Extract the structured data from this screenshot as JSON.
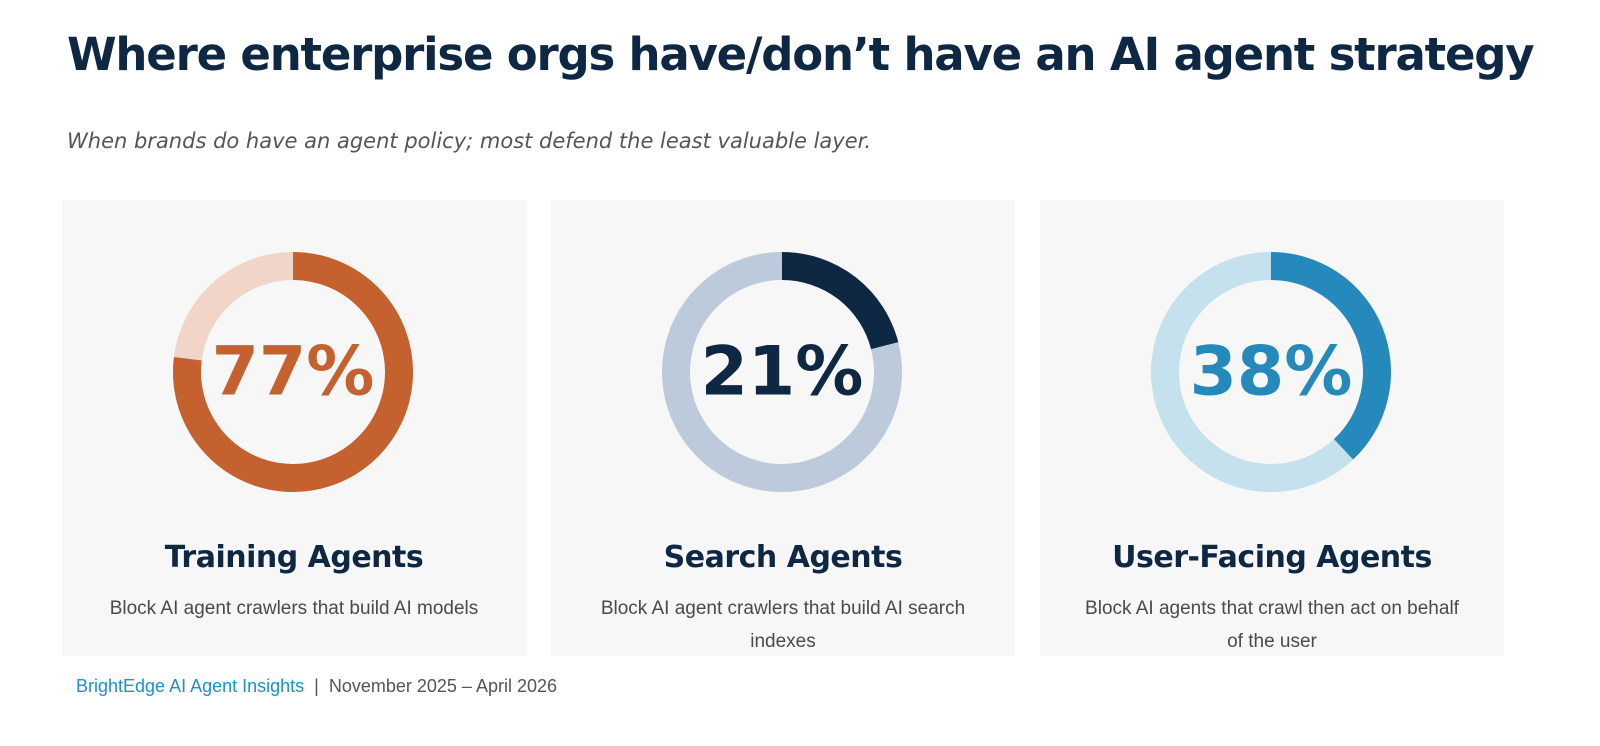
{
  "title": "Where enterprise orgs have/don’t have an AI agent strategy",
  "subtitle": "When brands do have an agent policy; most defend the least valuable layer.",
  "cards": [
    {
      "title": "Training Agents",
      "description": "Block AI agent crawlers that build AI models",
      "value_label": "77%"
    },
    {
      "title": "Search Agents",
      "description": "Block AI agent crawlers that build AI search indexes",
      "value_label": "21%"
    },
    {
      "title": "User-Facing Agents",
      "description": "Block AI agents that crawl then act on behalf of the user",
      "value_label": "38%"
    }
  ],
  "footer": {
    "brand": "BrightEdge AI Agent Insights",
    "separator": "|",
    "period": "November 2025 – April  2026"
  },
  "chart_data": [
    {
      "type": "pie",
      "variant": "donut",
      "categories": [
        "Training Agents"
      ],
      "values": [
        77
      ],
      "unit": "%",
      "colors": {
        "fill": "#c4612e",
        "track": "#f0d5c8",
        "label": "#c4612e"
      }
    },
    {
      "type": "pie",
      "variant": "donut",
      "categories": [
        "Search Agents"
      ],
      "values": [
        21
      ],
      "unit": "%",
      "colors": {
        "fill": "#0e2742",
        "track": "#bccadb",
        "label": "#0e2742"
      }
    },
    {
      "type": "pie",
      "variant": "donut",
      "categories": [
        "User-Facing Agents"
      ],
      "values": [
        38
      ],
      "unit": "%",
      "colors": {
        "fill": "#2589bb",
        "track": "#c5e1ee",
        "label": "#2589bb"
      }
    }
  ]
}
